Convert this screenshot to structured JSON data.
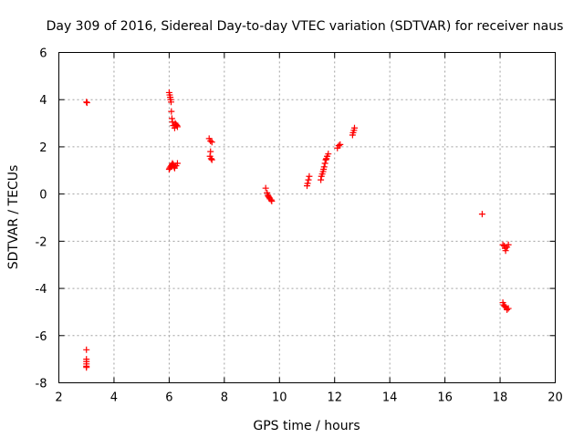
{
  "chart_data": {
    "type": "scatter",
    "title": "Day 309 of 2016, Sidereal Day-to-day VTEC variation (SDTVAR) for receiver naus",
    "xlabel": "GPS time / hours",
    "ylabel": "SDTVAR / TECUs",
    "xlim": [
      2,
      20
    ],
    "ylim": [
      -8,
      6
    ],
    "xticks": [
      2,
      4,
      6,
      8,
      10,
      12,
      14,
      16,
      18,
      20
    ],
    "yticks": [
      -8,
      -6,
      -4,
      -2,
      0,
      2,
      4,
      6
    ],
    "grid": true,
    "marker": "+",
    "color": "#ff0000",
    "series": [
      {
        "name": "naus",
        "points": [
          [
            3.0,
            3.9
          ],
          [
            3.02,
            3.87
          ],
          [
            3.0,
            -6.6
          ],
          [
            3.0,
            -7.0
          ],
          [
            3.0,
            -7.1
          ],
          [
            3.0,
            -7.2
          ],
          [
            3.0,
            -7.3
          ],
          [
            3.0,
            -7.35
          ],
          [
            6.0,
            4.3
          ],
          [
            6.02,
            4.2
          ],
          [
            6.04,
            4.1
          ],
          [
            6.05,
            4.0
          ],
          [
            6.07,
            3.9
          ],
          [
            6.08,
            3.5
          ],
          [
            6.1,
            3.2
          ],
          [
            6.12,
            3.05
          ],
          [
            6.15,
            2.9
          ],
          [
            6.2,
            2.8
          ],
          [
            6.22,
            3.0
          ],
          [
            6.25,
            2.95
          ],
          [
            6.28,
            2.9
          ],
          [
            6.3,
            2.85
          ],
          [
            6.0,
            1.05
          ],
          [
            6.02,
            1.1
          ],
          [
            6.05,
            1.15
          ],
          [
            6.08,
            1.2
          ],
          [
            6.1,
            1.25
          ],
          [
            6.12,
            1.3
          ],
          [
            6.15,
            1.25
          ],
          [
            6.18,
            1.15
          ],
          [
            6.2,
            1.1
          ],
          [
            6.25,
            1.2
          ],
          [
            6.3,
            1.3
          ],
          [
            7.45,
            2.35
          ],
          [
            7.5,
            2.25
          ],
          [
            7.55,
            2.2
          ],
          [
            7.5,
            1.8
          ],
          [
            7.48,
            1.6
          ],
          [
            7.52,
            1.5
          ],
          [
            7.55,
            1.45
          ],
          [
            9.5,
            0.25
          ],
          [
            9.55,
            0.05
          ],
          [
            9.58,
            -0.05
          ],
          [
            9.6,
            -0.1
          ],
          [
            9.63,
            -0.15
          ],
          [
            9.65,
            -0.2
          ],
          [
            9.7,
            -0.25
          ],
          [
            9.72,
            -0.3
          ],
          [
            11.0,
            0.35
          ],
          [
            11.02,
            0.45
          ],
          [
            11.05,
            0.6
          ],
          [
            11.08,
            0.75
          ],
          [
            11.5,
            0.6
          ],
          [
            11.52,
            0.75
          ],
          [
            11.55,
            0.85
          ],
          [
            11.58,
            0.95
          ],
          [
            11.6,
            1.05
          ],
          [
            11.62,
            1.15
          ],
          [
            11.65,
            1.3
          ],
          [
            11.68,
            1.45
          ],
          [
            11.7,
            1.5
          ],
          [
            11.73,
            1.6
          ],
          [
            11.77,
            1.7
          ],
          [
            12.1,
            1.95
          ],
          [
            12.15,
            2.05
          ],
          [
            12.2,
            2.1
          ],
          [
            12.65,
            2.5
          ],
          [
            12.67,
            2.6
          ],
          [
            12.7,
            2.7
          ],
          [
            12.72,
            2.8
          ],
          [
            17.35,
            -0.85
          ],
          [
            18.1,
            -2.15
          ],
          [
            18.15,
            -2.2
          ],
          [
            18.18,
            -2.3
          ],
          [
            18.2,
            -2.4
          ],
          [
            18.25,
            -2.25
          ],
          [
            18.3,
            -2.15
          ],
          [
            18.1,
            -4.6
          ],
          [
            18.13,
            -4.7
          ],
          [
            18.16,
            -4.75
          ],
          [
            18.2,
            -4.8
          ],
          [
            18.25,
            -4.9
          ],
          [
            18.3,
            -4.85
          ]
        ]
      }
    ]
  }
}
